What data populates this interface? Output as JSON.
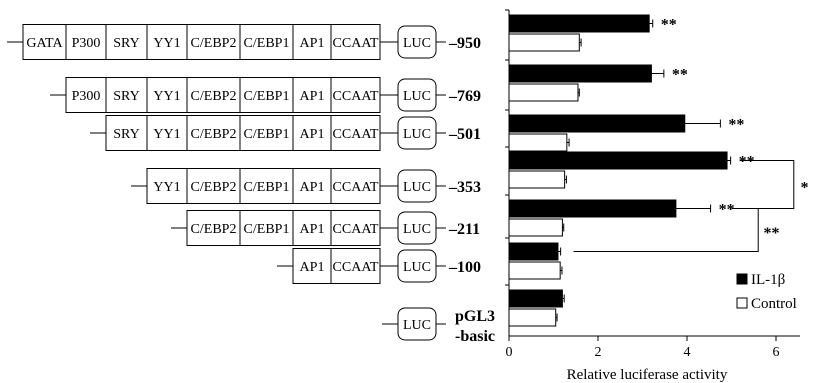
{
  "constructs": [
    {
      "label": "–950",
      "elements": [
        "GATA",
        "P300",
        "SRY",
        "YY1",
        "C/EBP2",
        "C/EBP1",
        "AP1",
        "CCAAT"
      ]
    },
    {
      "label": "–769",
      "elements": [
        "P300",
        "SRY",
        "YY1",
        "C/EBP2",
        "C/EBP1",
        "AP1",
        "CCAAT"
      ]
    },
    {
      "label": "–501",
      "elements": [
        "SRY",
        "YY1",
        "C/EBP2",
        "C/EBP1",
        "AP1",
        "CCAAT"
      ]
    },
    {
      "label": "–353",
      "elements": [
        "YY1",
        "C/EBP2",
        "C/EBP1",
        "AP1",
        "CCAAT"
      ]
    },
    {
      "label": "–211",
      "elements": [
        "C/EBP2",
        "C/EBP1",
        "AP1",
        "CCAAT"
      ]
    },
    {
      "label": "–100",
      "elements": [
        "AP1",
        "CCAAT"
      ]
    },
    {
      "label": [
        "pGL3",
        "-basic"
      ],
      "elements": []
    }
  ],
  "reporter_label": "LUC",
  "chart_data": {
    "type": "bar",
    "orientation": "horizontal",
    "categories": [
      "–950",
      "–769",
      "–501",
      "–353",
      "–211",
      "–100",
      "pGL3-basic"
    ],
    "series": [
      {
        "name": "IL-1β",
        "color": "#000000",
        "values": [
          3.15,
          3.2,
          3.95,
          4.9,
          3.75,
          1.1,
          1.2
        ],
        "errors": [
          0.08,
          0.28,
          0.8,
          0.08,
          0.78,
          0.06,
          0.04
        ]
      },
      {
        "name": "Control",
        "color": "#ffffff",
        "values": [
          1.58,
          1.55,
          1.3,
          1.25,
          1.2,
          1.15,
          1.05
        ],
        "errors": [
          0.04,
          0.03,
          0.05,
          0.04,
          0.03,
          0.04,
          0.03
        ]
      }
    ],
    "significance": [
      "**",
      "**",
      "**",
      "**",
      "**",
      "",
      ""
    ],
    "comparisons": [
      {
        "between": [
          "–353",
          "–211"
        ],
        "label": "*"
      },
      {
        "between": [
          "–211",
          "–100"
        ],
        "label": "**"
      }
    ],
    "xlabel": "Relative luciferase  activity",
    "xlim": [
      0,
      6.5
    ],
    "xticks": [
      "0",
      "2",
      "4",
      "6"
    ],
    "legend": {
      "position": "bottom-right",
      "entries": [
        "IL-1β",
        "Control"
      ]
    }
  }
}
